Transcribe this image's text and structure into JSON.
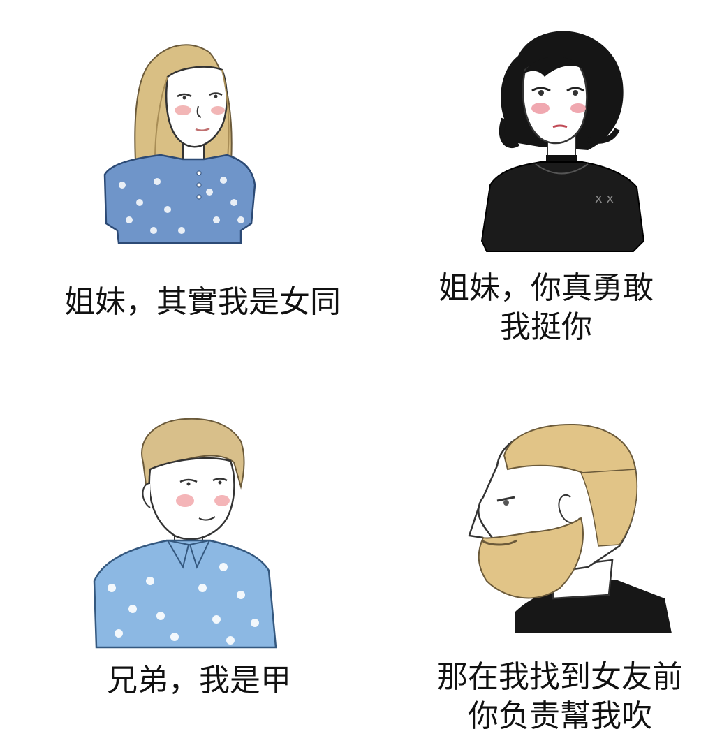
{
  "panels": [
    {
      "id": "top-left",
      "caption_lines": [
        "姐妹，其實我是女同"
      ],
      "hair_color": "#d9bf84",
      "shirt_color": "#6f95c9",
      "icon": "blonde-girl-floral-blouse-illustration"
    },
    {
      "id": "top-right",
      "caption_lines": [
        "姐妹，你真勇敢",
        "我挺你"
      ],
      "hair_color": "#151515",
      "shirt_color": "#1b1b1b",
      "icon": "goth-girl-black-shirt-illustration"
    },
    {
      "id": "bottom-left",
      "caption_lines": [
        "兄弟，我是甲"
      ],
      "hair_color": "#d8bf8a",
      "shirt_color": "#8cb8e3",
      "icon": "blond-boy-floral-shirt-illustration"
    },
    {
      "id": "bottom-right",
      "caption_lines": [
        "那在我找到女友前",
        "你负责幫我吹"
      ],
      "hair_color": "#e1c487",
      "shirt_color": "#171717",
      "icon": "bearded-chad-profile-illustration"
    }
  ]
}
